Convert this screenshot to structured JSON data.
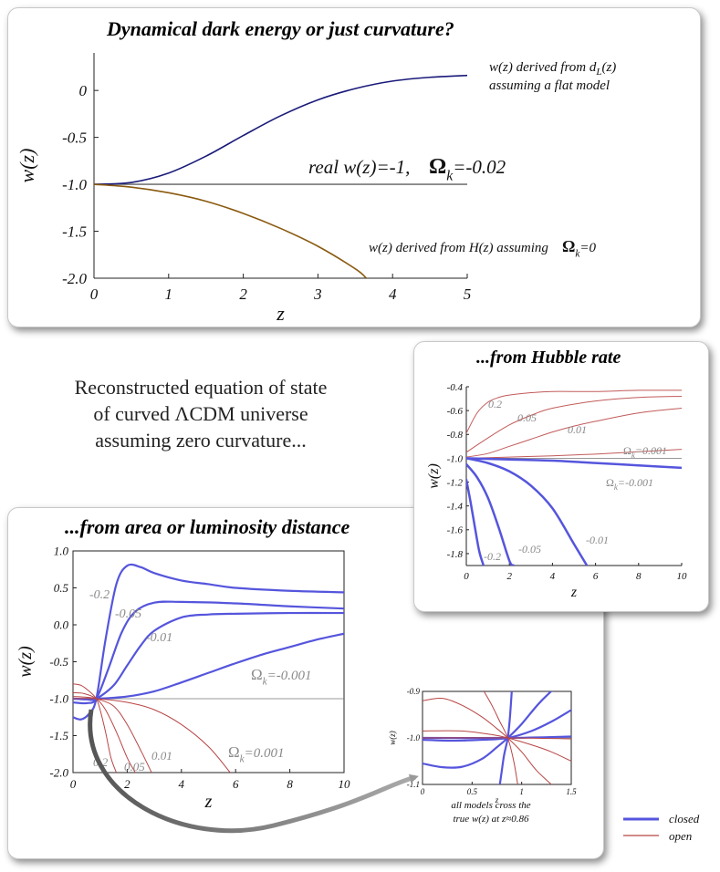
{
  "center_text": [
    "Reconstructed equation of state",
    "of curved ΛCDM universe",
    "assuming zero curvature..."
  ],
  "legend": [
    {
      "label": "closed",
      "color": "#5555dd"
    },
    {
      "label": "open",
      "color": "#b84444"
    }
  ],
  "chart_data": [
    {
      "type": "line",
      "title": "Dynamical dark energy or just curvature?",
      "xlabel": "z",
      "ylabel": "w(z)",
      "xlim": [
        0,
        5
      ],
      "ylim": [
        -2.0,
        0.4
      ],
      "x_ticks": [
        "0",
        "1",
        "2",
        "3",
        "4",
        "5"
      ],
      "y_ticks": [
        "0",
        "-0.5",
        "-1.0",
        "-1.5",
        "-2.0"
      ],
      "series": [
        {
          "name": "w(z) derived from d_L(z) assuming a flat model",
          "color": "#1a1a7a",
          "x": [
            0,
            0.5,
            1,
            1.5,
            2,
            2.5,
            3,
            3.5,
            4,
            4.5,
            5
          ],
          "y": [
            -1.0,
            -0.98,
            -0.88,
            -0.7,
            -0.48,
            -0.27,
            -0.1,
            0.02,
            0.1,
            0.14,
            0.16
          ]
        },
        {
          "name": "w(z) derived from H(z) assuming Ωk=0",
          "color": "#8a5a10",
          "x": [
            0,
            0.5,
            1,
            1.5,
            2,
            2.5,
            3,
            3.5,
            3.65
          ],
          "y": [
            -1.0,
            -1.03,
            -1.09,
            -1.18,
            -1.31,
            -1.47,
            -1.66,
            -1.9,
            -2.0
          ]
        },
        {
          "name": "real w(z)=-1",
          "color": "#777777",
          "x": [
            0,
            5
          ],
          "y": [
            -1.0,
            -1.0
          ]
        }
      ],
      "annotations": {
        "dl_line1": "w(z) derived from d",
        "dl_sub": "L",
        "dl_tail": "(z)",
        "dl_line2": "assuming a flat model",
        "real_a": "real w(z)=-1,",
        "real_omega": "Ω",
        "real_sub": "k",
        "real_val": "=-0.02",
        "h_a": "w(z) derived from H(z) assuming",
        "h_omega": "Ω",
        "h_sub": "k",
        "h_val": "=0"
      }
    },
    {
      "type": "line",
      "title": "...from Hubble rate",
      "xlabel": "z",
      "ylabel": "w(z)",
      "xlim": [
        0,
        10
      ],
      "ylim": [
        -1.9,
        -0.4
      ],
      "x_ticks": [
        "0",
        "2",
        "4",
        "6",
        "8",
        "10"
      ],
      "y_ticks": [
        "-0.4",
        "-0.6",
        "-0.8",
        "-1.0",
        "-1.2",
        "-1.4",
        "-1.6",
        "-1.8"
      ],
      "series": [
        {
          "name": "0.2",
          "color": "#c25a5a",
          "width": 1,
          "x": [
            0,
            0.5,
            1,
            1.5,
            2,
            3,
            4,
            6,
            8,
            10
          ],
          "y": [
            -0.79,
            -0.62,
            -0.53,
            -0.49,
            -0.47,
            -0.45,
            -0.44,
            -0.44,
            -0.43,
            -0.43
          ]
        },
        {
          "name": "0.05",
          "color": "#c25a5a",
          "width": 1,
          "x": [
            0,
            1,
            2,
            3,
            4,
            6,
            8,
            10
          ],
          "y": [
            -0.95,
            -0.83,
            -0.72,
            -0.64,
            -0.58,
            -0.52,
            -0.49,
            -0.48
          ]
        },
        {
          "name": "0.01",
          "color": "#c25a5a",
          "width": 1,
          "x": [
            0,
            1,
            2,
            3,
            4,
            5,
            6,
            8,
            10
          ],
          "y": [
            -0.99,
            -0.96,
            -0.9,
            -0.84,
            -0.78,
            -0.73,
            -0.69,
            -0.62,
            -0.58
          ]
        },
        {
          "name": "Ωk=0.001",
          "color": "#c25a5a",
          "width": 1,
          "x": [
            0,
            2,
            4,
            6,
            8,
            10
          ],
          "y": [
            -1.0,
            -0.99,
            -0.98,
            -0.965,
            -0.945,
            -0.925
          ]
        },
        {
          "name": "Ωk=-0.001",
          "color": "#5555dd",
          "width": 2.5,
          "x": [
            0,
            2,
            4,
            6,
            8,
            10
          ],
          "y": [
            -1.0,
            -1.01,
            -1.02,
            -1.04,
            -1.06,
            -1.08
          ]
        },
        {
          "name": "-0.01",
          "color": "#5555dd",
          "width": 2.5,
          "x": [
            0,
            1,
            2,
            3,
            4,
            5,
            5.6
          ],
          "y": [
            -1.0,
            -1.04,
            -1.11,
            -1.23,
            -1.42,
            -1.72,
            -1.9
          ]
        },
        {
          "name": "-0.05",
          "color": "#5555dd",
          "width": 2.5,
          "x": [
            0,
            0.5,
            1,
            1.5,
            2,
            2.2
          ],
          "y": [
            -1.05,
            -1.16,
            -1.33,
            -1.58,
            -1.86,
            -1.9
          ]
        },
        {
          "name": "-0.2",
          "color": "#5555dd",
          "width": 2.5,
          "x": [
            0,
            0.2,
            0.4,
            0.6,
            0.8
          ],
          "y": [
            -1.18,
            -1.37,
            -1.58,
            -1.78,
            -1.9
          ]
        },
        {
          "name": "true",
          "color": "#777777",
          "width": 0.8,
          "x": [
            0,
            10
          ],
          "y": [
            -1.0,
            -1.0
          ]
        }
      ],
      "annotations": {
        "l02": "0.2",
        "l005": "0.05",
        "l001": "0.01",
        "lpos_omega": "Ω",
        "lpos_sub": "k",
        "lpos_val": "=0.001",
        "lneg_omega": "Ω",
        "lneg_sub": "k",
        "lneg_val": "=-0.001",
        "ln001": "-0.01",
        "ln005": "-0.05",
        "ln02": "-0.2"
      }
    },
    {
      "type": "line",
      "title": "...from area or luminosity distance",
      "xlabel": "z",
      "ylabel": "w(z)",
      "xlim": [
        0,
        10
      ],
      "ylim": [
        -2.0,
        1.0
      ],
      "x_ticks": [
        "0",
        "2",
        "4",
        "6",
        "8",
        "10"
      ],
      "y_ticks": [
        "1.0",
        "0.5",
        "0.0",
        "-0.5",
        "-1.0",
        "-1.5",
        "-2.0"
      ],
      "series": [
        {
          "name": "-0.2",
          "color": "#5555dd",
          "width": 2.2,
          "x": [
            0,
            0.3,
            0.6,
            0.86,
            1.2,
            1.6,
            2,
            2.5,
            3,
            4,
            5,
            6,
            8,
            10
          ],
          "y": [
            -1.25,
            -1.28,
            -1.2,
            -1.0,
            -0.2,
            0.55,
            0.8,
            0.78,
            0.7,
            0.6,
            0.55,
            0.5,
            0.46,
            0.44
          ]
        },
        {
          "name": "-0.05",
          "color": "#5555dd",
          "width": 2.2,
          "x": [
            0,
            0.5,
            0.86,
            1.3,
            1.8,
            2.3,
            3,
            4,
            6,
            8,
            10
          ],
          "y": [
            -1.05,
            -1.06,
            -1.0,
            -0.6,
            -0.1,
            0.18,
            0.3,
            0.31,
            0.29,
            0.25,
            0.22
          ]
        },
        {
          "name": "-0.01",
          "color": "#5555dd",
          "width": 2.2,
          "x": [
            0,
            0.5,
            0.86,
            1.5,
            2,
            2.5,
            3,
            4,
            5,
            6,
            8,
            10
          ],
          "y": [
            -1.0,
            -1.01,
            -1.0,
            -0.82,
            -0.55,
            -0.28,
            -0.08,
            0.1,
            0.14,
            0.15,
            0.16,
            0.16
          ]
        },
        {
          "name": "Ωk=-0.001",
          "color": "#5555dd",
          "width": 2.2,
          "x": [
            0,
            0.86,
            2,
            3,
            4,
            5,
            6,
            7,
            8,
            9,
            10
          ],
          "y": [
            -1.0,
            -1.0,
            -0.97,
            -0.9,
            -0.78,
            -0.65,
            -0.52,
            -0.4,
            -0.3,
            -0.2,
            -0.12
          ]
        },
        {
          "name": "0.2",
          "color": "#b84444",
          "width": 1,
          "x": [
            0,
            0.3,
            0.6,
            0.86,
            1.0,
            1.2,
            1.4,
            1.6
          ],
          "y": [
            -0.8,
            -0.82,
            -0.9,
            -1.0,
            -1.15,
            -1.45,
            -1.8,
            -2.0
          ]
        },
        {
          "name": "0.05",
          "color": "#b84444",
          "width": 1,
          "x": [
            0,
            0.4,
            0.86,
            1.2,
            1.6,
            2.0,
            2.3
          ],
          "y": [
            -0.92,
            -0.93,
            -1.0,
            -1.15,
            -1.45,
            -1.8,
            -2.0
          ]
        },
        {
          "name": "0.01",
          "color": "#b84444",
          "width": 1,
          "x": [
            0,
            0.5,
            0.86,
            1.5,
            2,
            2.5,
            2.9
          ],
          "y": [
            -0.97,
            -0.98,
            -1.0,
            -1.1,
            -1.35,
            -1.7,
            -2.0
          ]
        },
        {
          "name": "Ωk=0.001",
          "color": "#b84444",
          "width": 1,
          "x": [
            0,
            0.86,
            2,
            3,
            4,
            5,
            5.8
          ],
          "y": [
            -1.0,
            -1.0,
            -1.05,
            -1.15,
            -1.35,
            -1.65,
            -2.0
          ]
        },
        {
          "name": "true",
          "color": "#777777",
          "width": 0.8,
          "x": [
            0,
            10
          ],
          "y": [
            -1.0,
            -1.0
          ]
        }
      ],
      "annotations": {
        "ln02": "-0.2",
        "ln005": "-0.05",
        "ln001": "-0.01",
        "lneg_omega": "Ω",
        "lneg_sub": "k",
        "lneg_val": "=-0.001",
        "lp02": "0.2",
        "lp005": "0.05",
        "lp001": "0.01",
        "lpos_omega": "Ω",
        "lpos_sub": "k",
        "lpos_val": "=0.001"
      }
    },
    {
      "type": "line",
      "title": "",
      "xlabel": "z",
      "ylabel": "w(z)",
      "xlim": [
        0,
        1.5
      ],
      "ylim": [
        -1.1,
        -0.9
      ],
      "x_ticks": [
        "0",
        "0.5",
        "1",
        "1.5"
      ],
      "y_ticks": [
        "-0.9",
        "-1.0",
        "-1.1"
      ],
      "series": [
        {
          "name": "closed -0.2",
          "color": "#5555dd",
          "width": 2.2,
          "x": [
            0.78,
            0.8,
            0.82,
            0.84,
            0.86,
            0.88,
            0.9
          ],
          "y": [
            -1.1,
            -1.07,
            -1.04,
            -1.02,
            -1.0,
            -0.96,
            -0.9
          ]
        },
        {
          "name": "closed -0.05",
          "color": "#5555dd",
          "width": 2.2,
          "x": [
            0,
            0.2,
            0.4,
            0.6,
            0.75,
            0.86,
            1.0,
            1.2,
            1.5
          ],
          "y": [
            -1.055,
            -1.063,
            -1.062,
            -1.045,
            -1.02,
            -1.0,
            -0.97,
            -0.92,
            -0.86
          ]
        },
        {
          "name": "closed -0.01",
          "color": "#5555dd",
          "width": 2.2,
          "x": [
            0,
            0.3,
            0.6,
            0.86,
            1.1,
            1.3,
            1.5
          ],
          "y": [
            -1.004,
            -1.006,
            -1.004,
            -1.0,
            -0.985,
            -0.965,
            -0.94
          ]
        },
        {
          "name": "closed -0.001",
          "color": "#5555dd",
          "width": 2.2,
          "x": [
            0,
            0.86,
            1.5
          ],
          "y": [
            -1.0,
            -1.0,
            -0.997
          ]
        },
        {
          "name": "open 0.2",
          "color": "#b84444",
          "width": 1,
          "x": [
            0.62,
            0.7,
            0.78,
            0.86,
            0.92,
            0.96
          ],
          "y": [
            -0.9,
            -0.93,
            -0.965,
            -1.0,
            -1.05,
            -1.1
          ]
        },
        {
          "name": "open 0.05",
          "color": "#b84444",
          "width": 1,
          "x": [
            0,
            0.2,
            0.4,
            0.6,
            0.75,
            0.86,
            1.0,
            1.15,
            1.3
          ],
          "y": [
            -0.92,
            -0.915,
            -0.93,
            -0.955,
            -0.98,
            -1.0,
            -1.03,
            -1.07,
            -1.1
          ]
        },
        {
          "name": "open 0.01",
          "color": "#b84444",
          "width": 1,
          "x": [
            0,
            0.4,
            0.7,
            0.86,
            1.1,
            1.3,
            1.5
          ],
          "y": [
            -0.985,
            -0.985,
            -0.993,
            -1.0,
            -1.015,
            -1.03,
            -1.05
          ]
        },
        {
          "name": "open 0.001",
          "color": "#b84444",
          "width": 1,
          "x": [
            0,
            0.86,
            1.5
          ],
          "y": [
            -1.0,
            -1.0,
            -1.002
          ]
        },
        {
          "name": "true",
          "color": "#777777",
          "width": 0.8,
          "x": [
            0,
            1.5
          ],
          "y": [
            -1.0,
            -1.0
          ]
        }
      ],
      "annotations": {
        "caption1": "all models cross the",
        "caption2": "true w(z) at z≈0.86"
      }
    }
  ]
}
